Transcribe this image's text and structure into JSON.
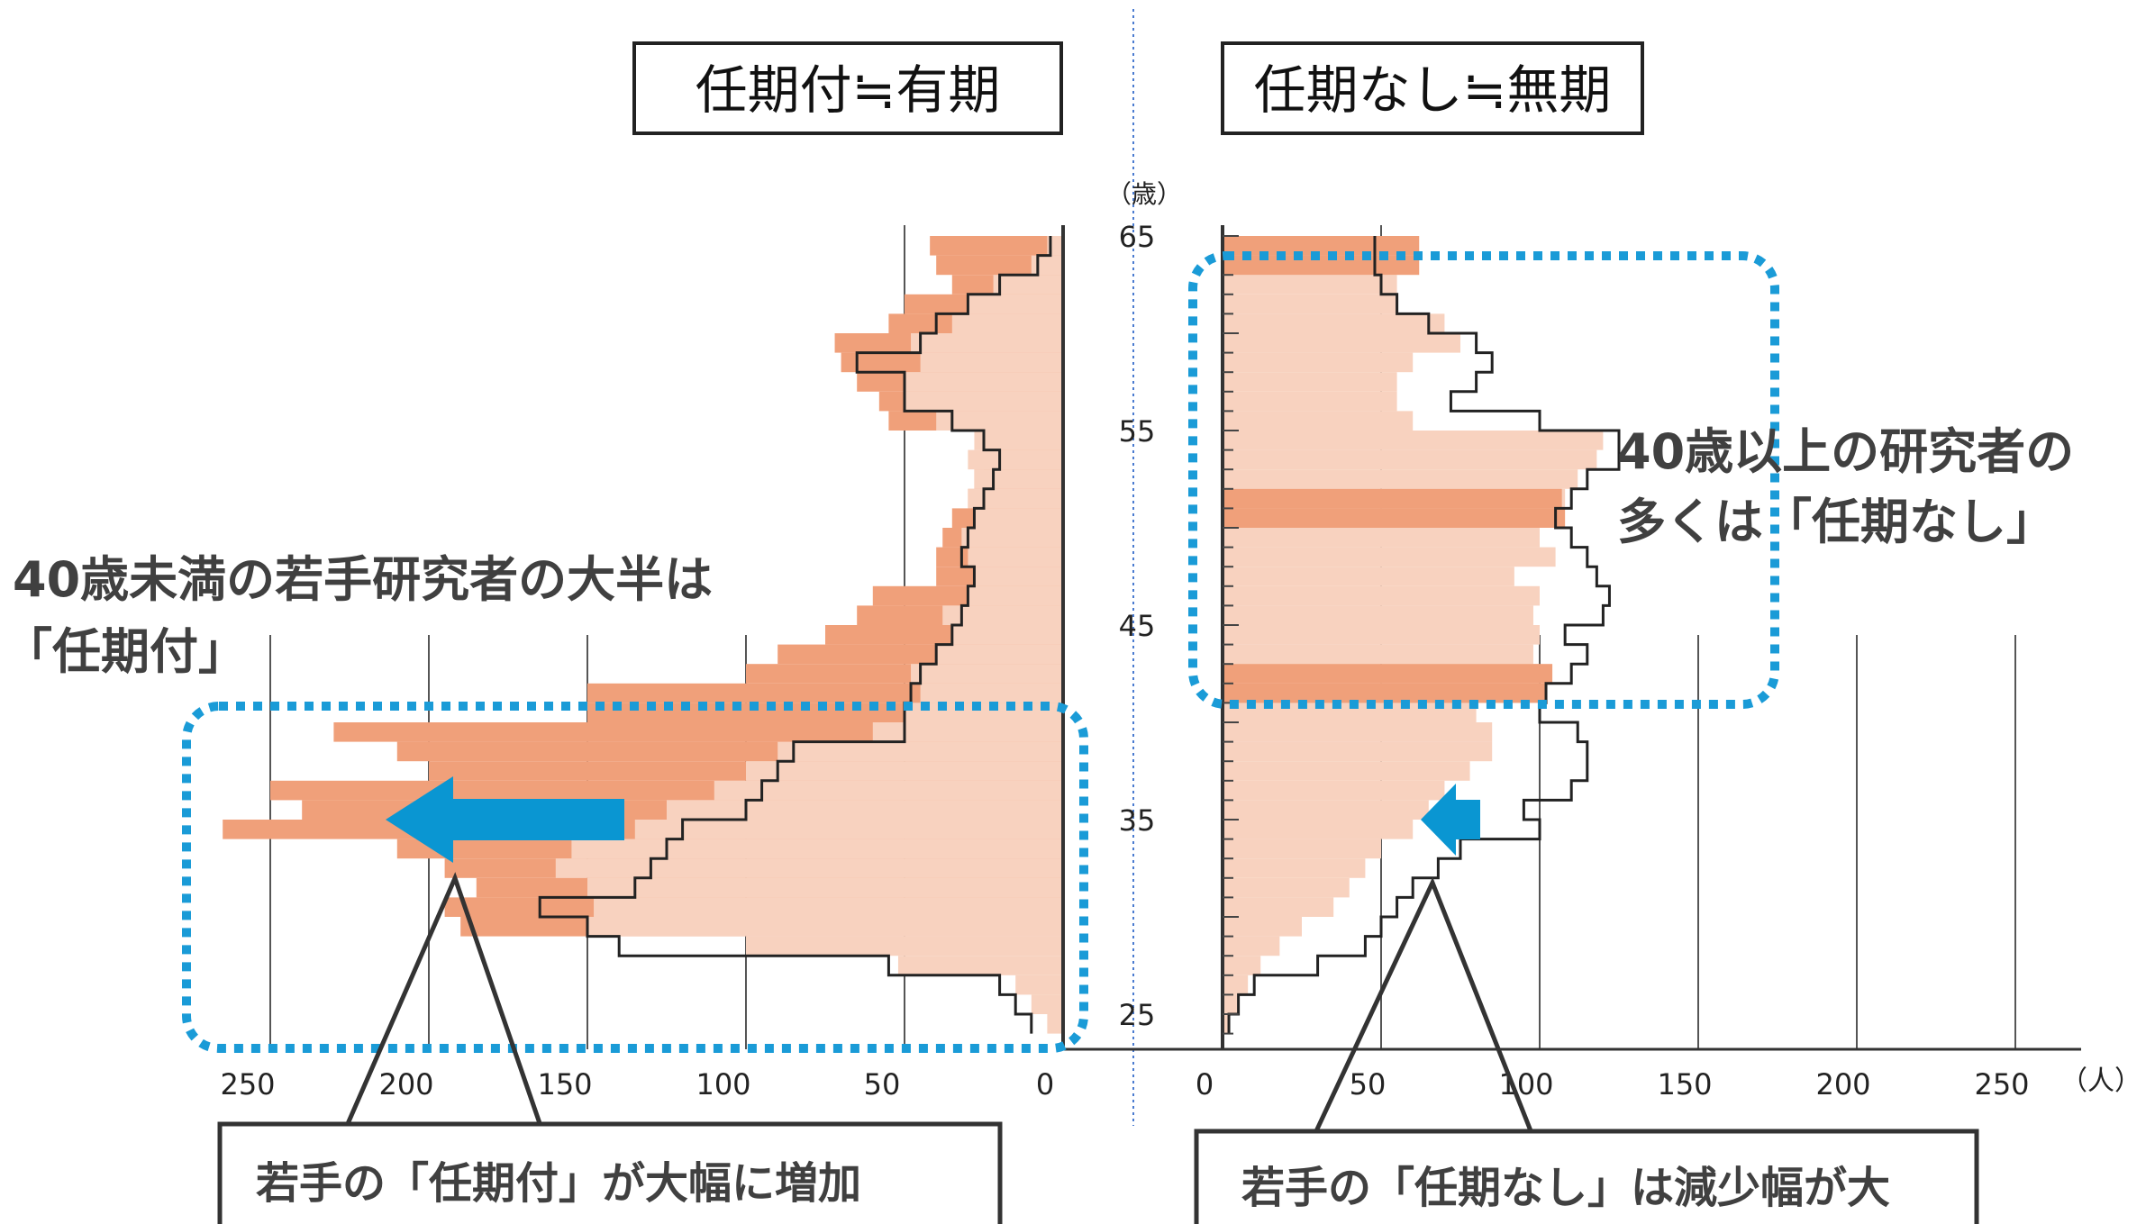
{
  "chart_data": {
    "type": "area",
    "titles": {
      "left": "任期付≒有期",
      "right": "任期なし≒無期"
    },
    "y_unit": "（歳）",
    "x_unit": "（人）",
    "y_ticks": [
      "65",
      "55",
      "45",
      "35",
      "25"
    ],
    "x_ticks_left": [
      "250",
      "200",
      "150",
      "100",
      "50",
      "0"
    ],
    "x_ticks_right": [
      "0",
      "50",
      "100",
      "150",
      "200",
      "250"
    ],
    "ylim": [
      24,
      65
    ],
    "xlim_left": [
      0,
      250
    ],
    "xlim_right": [
      0,
      250
    ],
    "series_left": {
      "filled_light": [
        {
          "age": 24,
          "v": 5
        },
        {
          "age": 25,
          "v": 10
        },
        {
          "age": 26,
          "v": 15
        },
        {
          "age": 27,
          "v": 52
        },
        {
          "age": 28,
          "v": 100
        },
        {
          "age": 29,
          "v": 150
        },
        {
          "age": 30,
          "v": 148
        },
        {
          "age": 31,
          "v": 150
        },
        {
          "age": 32,
          "v": 160
        },
        {
          "age": 33,
          "v": 155
        },
        {
          "age": 34,
          "v": 135
        },
        {
          "age": 35,
          "v": 125
        },
        {
          "age": 36,
          "v": 110
        },
        {
          "age": 37,
          "v": 100
        },
        {
          "age": 38,
          "v": 90
        },
        {
          "age": 39,
          "v": 60
        },
        {
          "age": 40,
          "v": 50
        },
        {
          "age": 41,
          "v": 45
        },
        {
          "age": 42,
          "v": 48
        },
        {
          "age": 43,
          "v": 40
        },
        {
          "age": 44,
          "v": 35
        },
        {
          "age": 45,
          "v": 38
        },
        {
          "age": 46,
          "v": 30
        },
        {
          "age": 47,
          "v": 28
        },
        {
          "age": 48,
          "v": 30
        },
        {
          "age": 49,
          "v": 32
        },
        {
          "age": 50,
          "v": 28
        },
        {
          "age": 51,
          "v": 30
        },
        {
          "age": 52,
          "v": 28
        },
        {
          "age": 53,
          "v": 30
        },
        {
          "age": 54,
          "v": 28
        },
        {
          "age": 55,
          "v": 40
        },
        {
          "age": 56,
          "v": 50
        },
        {
          "age": 57,
          "v": 50
        },
        {
          "age": 58,
          "v": 45
        },
        {
          "age": 59,
          "v": 48
        },
        {
          "age": 60,
          "v": 35
        },
        {
          "age": 61,
          "v": 30
        },
        {
          "age": 62,
          "v": 22
        },
        {
          "age": 63,
          "v": 10
        },
        {
          "age": 64,
          "v": 5
        }
      ],
      "filled_dark": [
        {
          "age": 29,
          "v": 190
        },
        {
          "age": 30,
          "v": 195
        },
        {
          "age": 31,
          "v": 185
        },
        {
          "age": 32,
          "v": 195
        },
        {
          "age": 33,
          "v": 210
        },
        {
          "age": 34,
          "v": 265
        },
        {
          "age": 35,
          "v": 240
        },
        {
          "age": 36,
          "v": 250
        },
        {
          "age": 37,
          "v": 200
        },
        {
          "age": 38,
          "v": 210
        },
        {
          "age": 39,
          "v": 230
        },
        {
          "age": 40,
          "v": 150
        },
        {
          "age": 41,
          "v": 150
        },
        {
          "age": 42,
          "v": 100
        },
        {
          "age": 43,
          "v": 90
        },
        {
          "age": 44,
          "v": 75
        },
        {
          "age": 45,
          "v": 65
        },
        {
          "age": 46,
          "v": 60
        },
        {
          "age": 47,
          "v": 40
        },
        {
          "age": 48,
          "v": 40
        },
        {
          "age": 49,
          "v": 38
        },
        {
          "age": 50,
          "v": 35
        },
        {
          "age": 51,
          "v": 30
        },
        {
          "age": 52,
          "v": 28
        },
        {
          "age": 53,
          "v": 25
        },
        {
          "age": 54,
          "v": 22
        },
        {
          "age": 55,
          "v": 55
        },
        {
          "age": 56,
          "v": 58
        },
        {
          "age": 57,
          "v": 65
        },
        {
          "age": 58,
          "v": 70
        },
        {
          "age": 59,
          "v": 72
        },
        {
          "age": 60,
          "v": 55
        },
        {
          "age": 61,
          "v": 50
        },
        {
          "age": 62,
          "v": 35
        },
        {
          "age": 63,
          "v": 40
        },
        {
          "age": 64,
          "v": 42
        }
      ],
      "outline": [
        {
          "age": 24,
          "v": 10
        },
        {
          "age": 25,
          "v": 15
        },
        {
          "age": 26,
          "v": 20
        },
        {
          "age": 27,
          "v": 55
        },
        {
          "age": 28,
          "v": 140
        },
        {
          "age": 29,
          "v": 150
        },
        {
          "age": 30,
          "v": 165
        },
        {
          "age": 31,
          "v": 135
        },
        {
          "age": 32,
          "v": 130
        },
        {
          "age": 33,
          "v": 125
        },
        {
          "age": 34,
          "v": 120
        },
        {
          "age": 35,
          "v": 100
        },
        {
          "age": 36,
          "v": 95
        },
        {
          "age": 37,
          "v": 90
        },
        {
          "age": 38,
          "v": 85
        },
        {
          "age": 39,
          "v": 50
        },
        {
          "age": 40,
          "v": 50
        },
        {
          "age": 41,
          "v": 48
        },
        {
          "age": 42,
          "v": 45
        },
        {
          "age": 43,
          "v": 40
        },
        {
          "age": 44,
          "v": 35
        },
        {
          "age": 45,
          "v": 32
        },
        {
          "age": 46,
          "v": 30
        },
        {
          "age": 47,
          "v": 28
        },
        {
          "age": 48,
          "v": 32
        },
        {
          "age": 49,
          "v": 30
        },
        {
          "age": 50,
          "v": 28
        },
        {
          "age": 51,
          "v": 25
        },
        {
          "age": 52,
          "v": 22
        },
        {
          "age": 53,
          "v": 20
        },
        {
          "age": 54,
          "v": 25
        },
        {
          "age": 55,
          "v": 35
        },
        {
          "age": 56,
          "v": 50
        },
        {
          "age": 57,
          "v": 50
        },
        {
          "age": 58,
          "v": 65
        },
        {
          "age": 59,
          "v": 45
        },
        {
          "age": 60,
          "v": 40
        },
        {
          "age": 61,
          "v": 30
        },
        {
          "age": 62,
          "v": 20
        },
        {
          "age": 63,
          "v": 8
        },
        {
          "age": 64,
          "v": 4
        }
      ]
    },
    "series_right": {
      "filled_light": [
        {
          "age": 24,
          "v": 2
        },
        {
          "age": 25,
          "v": 5
        },
        {
          "age": 26,
          "v": 8
        },
        {
          "age": 27,
          "v": 12
        },
        {
          "age": 28,
          "v": 18
        },
        {
          "age": 29,
          "v": 25
        },
        {
          "age": 30,
          "v": 35
        },
        {
          "age": 31,
          "v": 40
        },
        {
          "age": 32,
          "v": 45
        },
        {
          "age": 33,
          "v": 50
        },
        {
          "age": 34,
          "v": 60
        },
        {
          "age": 35,
          "v": 65
        },
        {
          "age": 36,
          "v": 70
        },
        {
          "age": 37,
          "v": 78
        },
        {
          "age": 38,
          "v": 85
        },
        {
          "age": 39,
          "v": 85
        },
        {
          "age": 40,
          "v": 80
        },
        {
          "age": 41,
          "v": 95
        },
        {
          "age": 42,
          "v": 100
        },
        {
          "age": 43,
          "v": 98
        },
        {
          "age": 44,
          "v": 100
        },
        {
          "age": 45,
          "v": 98
        },
        {
          "age": 46,
          "v": 100
        },
        {
          "age": 47,
          "v": 92
        },
        {
          "age": 48,
          "v": 105
        },
        {
          "age": 49,
          "v": 100
        },
        {
          "age": 50,
          "v": 105
        },
        {
          "age": 51,
          "v": 108
        },
        {
          "age": 52,
          "v": 112
        },
        {
          "age": 53,
          "v": 118
        },
        {
          "age": 54,
          "v": 120
        },
        {
          "age": 55,
          "v": 60
        },
        {
          "age": 56,
          "v": 55
        },
        {
          "age": 57,
          "v": 55
        },
        {
          "age": 58,
          "v": 60
        },
        {
          "age": 59,
          "v": 75
        },
        {
          "age": 60,
          "v": 70
        },
        {
          "age": 61,
          "v": 55
        },
        {
          "age": 62,
          "v": 55
        },
        {
          "age": 63,
          "v": 52
        },
        {
          "age": 64,
          "v": 60
        }
      ],
      "filled_dark": [
        {
          "age": 41,
          "v": 102
        },
        {
          "age": 42,
          "v": 104
        },
        {
          "age": 50,
          "v": 108
        },
        {
          "age": 51,
          "v": 107
        },
        {
          "age": 63,
          "v": 62
        },
        {
          "age": 64,
          "v": 62
        }
      ],
      "outline": [
        {
          "age": 24,
          "v": 2
        },
        {
          "age": 25,
          "v": 5
        },
        {
          "age": 26,
          "v": 10
        },
        {
          "age": 27,
          "v": 30
        },
        {
          "age": 28,
          "v": 45
        },
        {
          "age": 29,
          "v": 50
        },
        {
          "age": 30,
          "v": 55
        },
        {
          "age": 31,
          "v": 60
        },
        {
          "age": 32,
          "v": 68
        },
        {
          "age": 33,
          "v": 75
        },
        {
          "age": 34,
          "v": 100
        },
        {
          "age": 35,
          "v": 95
        },
        {
          "age": 36,
          "v": 110
        },
        {
          "age": 37,
          "v": 115
        },
        {
          "age": 38,
          "v": 115
        },
        {
          "age": 39,
          "v": 112
        },
        {
          "age": 40,
          "v": 100
        },
        {
          "age": 41,
          "v": 102
        },
        {
          "age": 42,
          "v": 110
        },
        {
          "age": 43,
          "v": 115
        },
        {
          "age": 44,
          "v": 108
        },
        {
          "age": 45,
          "v": 120
        },
        {
          "age": 46,
          "v": 122
        },
        {
          "age": 47,
          "v": 118
        },
        {
          "age": 48,
          "v": 115
        },
        {
          "age": 49,
          "v": 110
        },
        {
          "age": 50,
          "v": 105
        },
        {
          "age": 51,
          "v": 110
        },
        {
          "age": 52,
          "v": 115
        },
        {
          "age": 53,
          "v": 125
        },
        {
          "age": 54,
          "v": 125
        },
        {
          "age": 55,
          "v": 100
        },
        {
          "age": 56,
          "v": 72
        },
        {
          "age": 57,
          "v": 80
        },
        {
          "age": 58,
          "v": 85
        },
        {
          "age": 59,
          "v": 80
        },
        {
          "age": 60,
          "v": 65
        },
        {
          "age": 61,
          "v": 55
        },
        {
          "age": 62,
          "v": 50
        },
        {
          "age": 63,
          "v": 48
        },
        {
          "age": 64,
          "v": 48
        }
      ]
    }
  },
  "annotations": {
    "left_heading_line1": "40歳未満の若手研究者の大半は",
    "left_heading_line2": "「任期付」",
    "right_heading_line1": "40歳以上の研究者の",
    "right_heading_line2": "多くは「任期なし」",
    "left_callout": "若手の「任期付」が大幅に増加",
    "right_callout": "若手の「任期なし」は減少幅が大"
  },
  "colors": {
    "light_fill": "#f8d2bf",
    "dark_fill": "#f0a07a",
    "outline": "#222222",
    "dotted_box": "#1a9bd7",
    "arrow": "#0a96d2"
  }
}
